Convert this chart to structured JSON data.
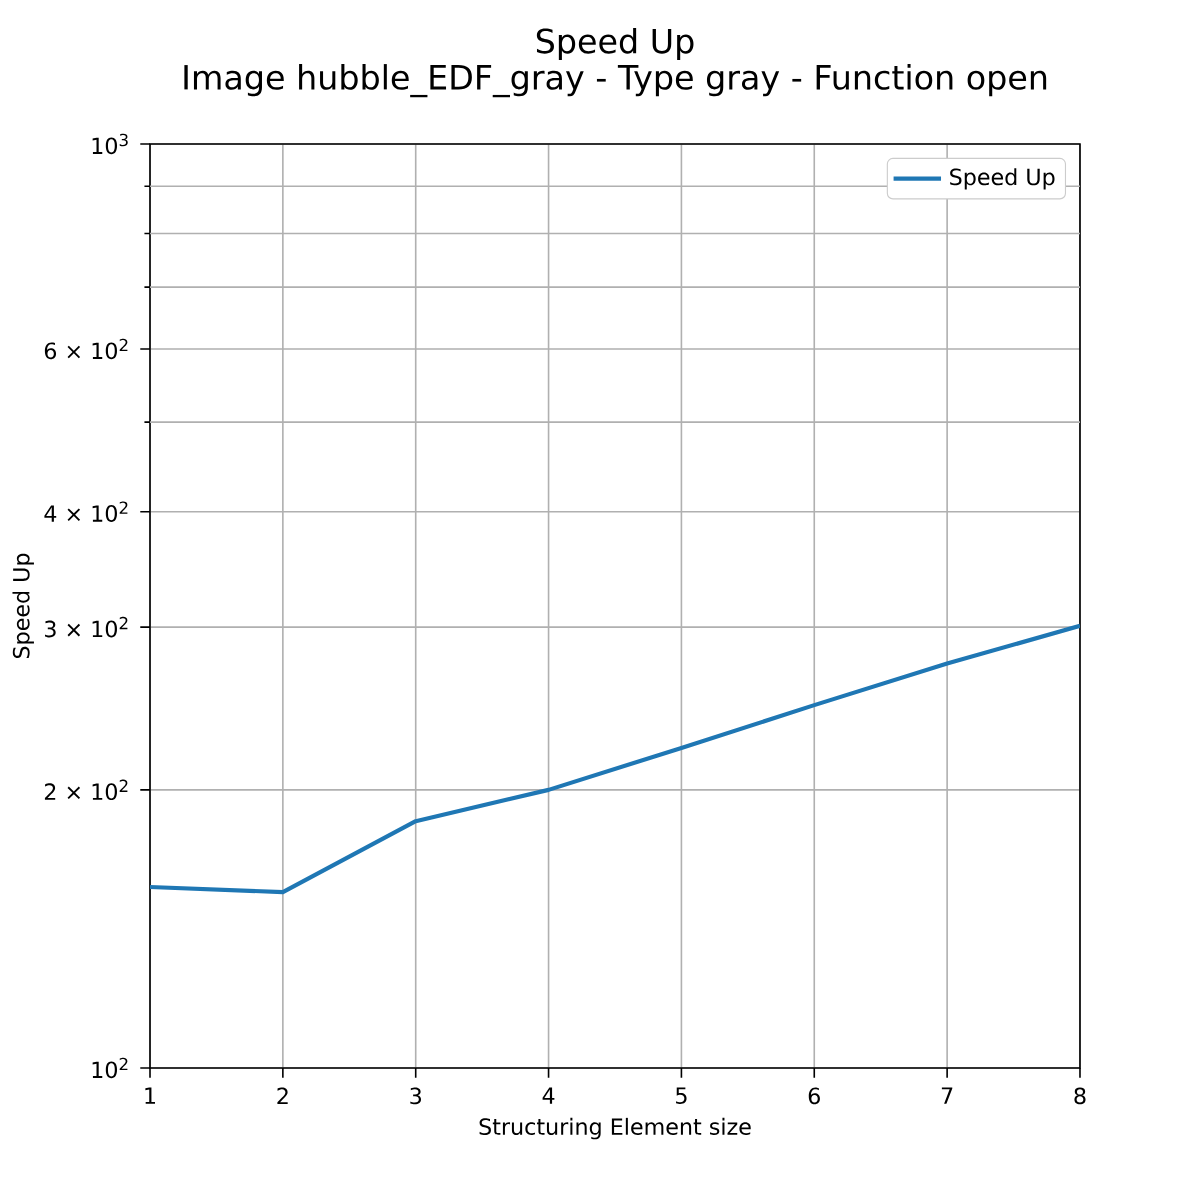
{
  "chart_data": {
    "type": "line",
    "title": "Speed Up",
    "subtitle": "Image hubble_EDF_gray - Type gray - Function open",
    "xlabel": "Structuring Element size",
    "ylabel": "Speed Up",
    "x": [
      1,
      2,
      3,
      4,
      5,
      6,
      7,
      8
    ],
    "series": [
      {
        "name": "Speed Up",
        "color": "#1f77b4",
        "values": [
          157,
          155,
          185,
          200,
          222,
          247,
          274,
          301
        ]
      }
    ],
    "xlim": [
      1,
      8
    ],
    "ylim": [
      100,
      1000
    ],
    "xticks": [
      1,
      2,
      3,
      4,
      5,
      6,
      7,
      8
    ],
    "yticks": [
      {
        "value": 100,
        "label": "10$^{2}$"
      },
      {
        "value": 200,
        "label": "2 × 10$^{2}$"
      },
      {
        "value": 300,
        "label": "3 × 10$^{2}$"
      },
      {
        "value": 400,
        "label": "4 × 10$^{2}$"
      },
      {
        "value": 500,
        "label": null
      },
      {
        "value": 600,
        "label": "6 × 10$^{2}$"
      },
      {
        "value": 700,
        "label": null
      },
      {
        "value": 800,
        "label": null
      },
      {
        "value": 900,
        "label": null
      },
      {
        "value": 1000,
        "label": "10$^{3}$"
      }
    ],
    "log": "y",
    "grid": true,
    "legend": "top right"
  }
}
